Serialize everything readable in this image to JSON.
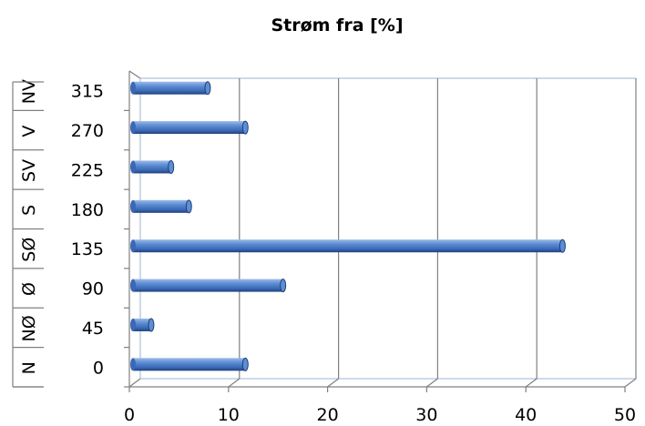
{
  "chart_data": {
    "type": "bar",
    "orientation": "horizontal",
    "style": "3d-cylinder",
    "title": "Strøm fra [%]",
    "categories": [
      {
        "label": "N",
        "degrees": "0"
      },
      {
        "label": "NØ",
        "degrees": "45"
      },
      {
        "label": "Ø",
        "degrees": "90"
      },
      {
        "label": "SØ",
        "degrees": "135"
      },
      {
        "label": "S",
        "degrees": "180"
      },
      {
        "label": "SV",
        "degrees": "225"
      },
      {
        "label": "V",
        "degrees": "270"
      },
      {
        "label": "NV",
        "degrees": "315"
      }
    ],
    "values": [
      11.7,
      2.2,
      15.5,
      43.7,
      6.0,
      4.2,
      11.7,
      7.9
    ],
    "xlim": [
      0,
      50
    ],
    "x_ticks": [
      "0",
      "10",
      "20",
      "30",
      "40",
      "50"
    ],
    "grid": true,
    "bar_color": "#4a7cc4",
    "bar_dark": "#1f3f7a",
    "bar_light": "#b8cdec"
  }
}
